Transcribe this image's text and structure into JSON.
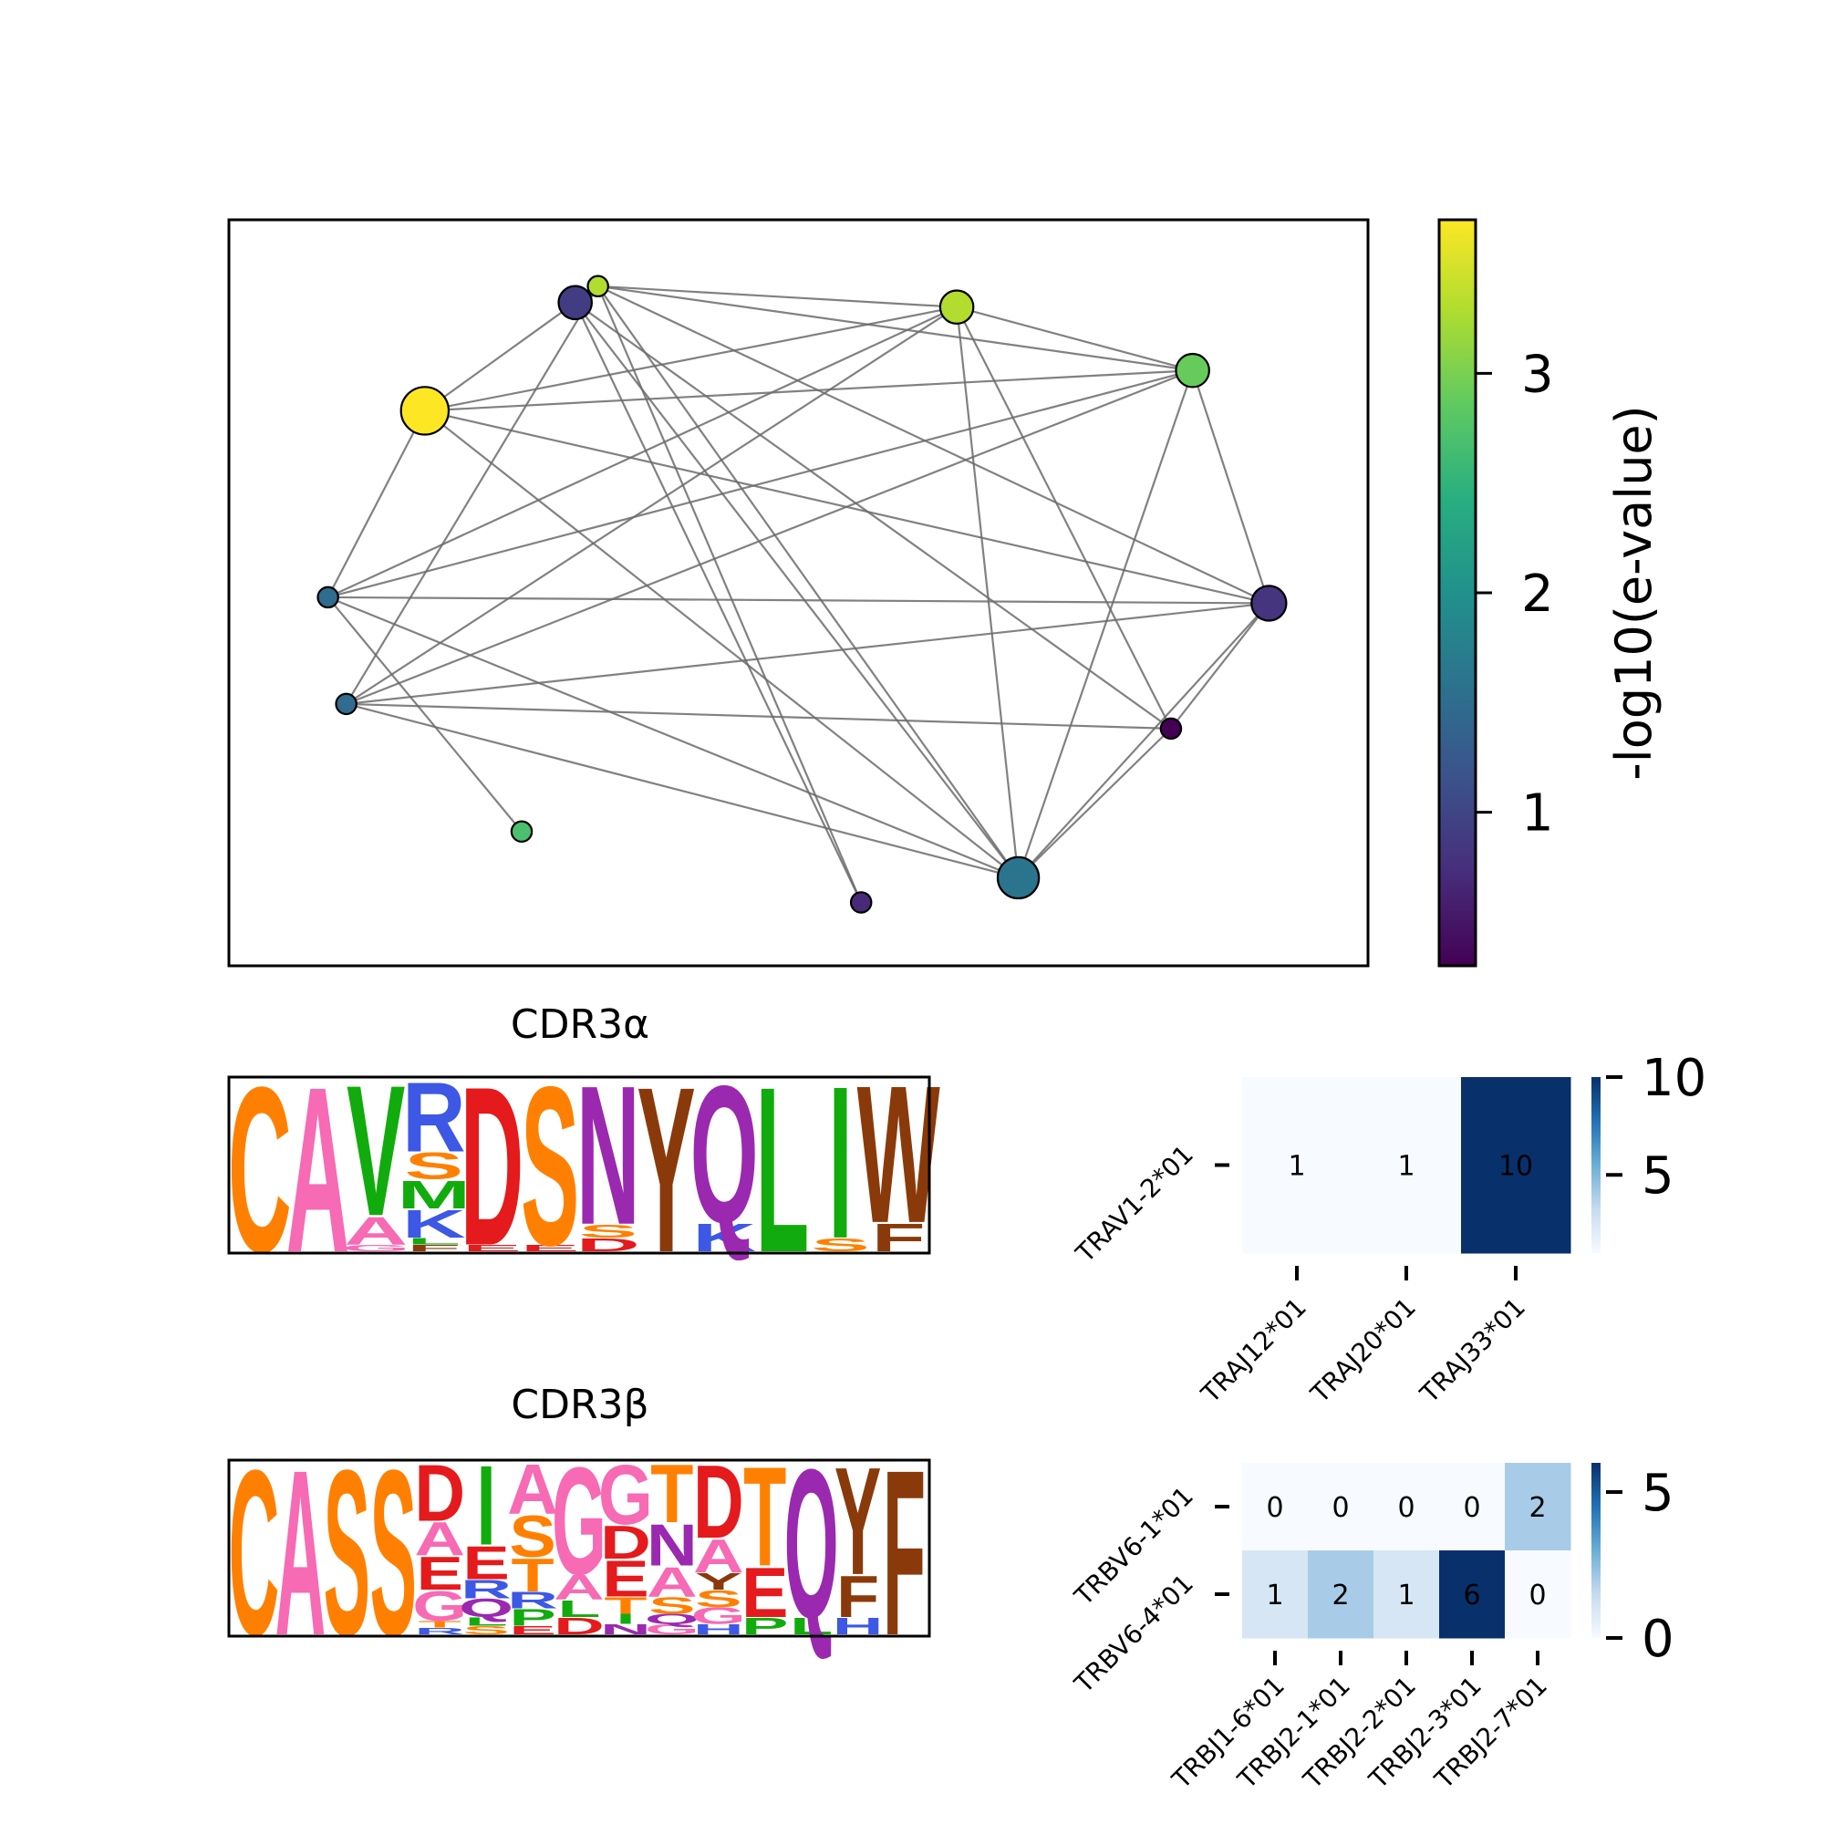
{
  "chart_data": [
    {
      "type": "network",
      "colorbar": {
        "label": "-log10(e-value)",
        "range": [
          0.3,
          3.7
        ],
        "ticks": [
          "1",
          "2",
          "3"
        ],
        "colormap": "viridis"
      },
      "nodes": [
        {
          "id": 0,
          "x": 0.172,
          "y": 0.744,
          "value": 3.7,
          "size": 2.4
        },
        {
          "id": 1,
          "x": 0.304,
          "y": 0.889,
          "value": 0.9,
          "size": 1.5
        },
        {
          "id": 2,
          "x": 0.324,
          "y": 0.911,
          "value": 3.3,
          "size": 0.7
        },
        {
          "id": 3,
          "x": 0.639,
          "y": 0.883,
          "value": 3.3,
          "size": 1.5
        },
        {
          "id": 4,
          "x": 0.846,
          "y": 0.798,
          "value": 2.9,
          "size": 1.5
        },
        {
          "id": 5,
          "x": 0.913,
          "y": 0.486,
          "value": 0.8,
          "size": 1.6
        },
        {
          "id": 6,
          "x": 0.827,
          "y": 0.318,
          "value": 0.3,
          "size": 0.7
        },
        {
          "id": 7,
          "x": 0.693,
          "y": 0.118,
          "value": 1.6,
          "size": 2.0
        },
        {
          "id": 8,
          "x": 0.555,
          "y": 0.085,
          "value": 0.7,
          "size": 0.7
        },
        {
          "id": 9,
          "x": 0.257,
          "y": 0.18,
          "value": 2.7,
          "size": 0.7
        },
        {
          "id": 10,
          "x": 0.103,
          "y": 0.351,
          "value": 1.5,
          "size": 0.7
        },
        {
          "id": 11,
          "x": 0.087,
          "y": 0.494,
          "value": 1.5,
          "size": 0.7
        }
      ],
      "edges": [
        [
          1,
          0
        ],
        [
          0,
          11
        ],
        [
          0,
          3
        ],
        [
          0,
          4
        ],
        [
          0,
          5
        ],
        [
          0,
          7
        ],
        [
          1,
          6
        ],
        [
          1,
          7
        ],
        [
          2,
          3
        ],
        [
          2,
          4
        ],
        [
          2,
          5
        ],
        [
          2,
          7
        ],
        [
          2,
          8
        ],
        [
          2,
          10
        ],
        [
          3,
          4
        ],
        [
          3,
          7
        ],
        [
          3,
          6
        ],
        [
          3,
          10
        ],
        [
          3,
          11
        ],
        [
          4,
          5
        ],
        [
          4,
          7
        ],
        [
          4,
          10
        ],
        [
          4,
          11
        ],
        [
          5,
          11
        ],
        [
          5,
          10
        ],
        [
          5,
          6
        ],
        [
          5,
          7
        ],
        [
          6,
          10
        ],
        [
          6,
          7
        ],
        [
          7,
          10
        ],
        [
          7,
          11
        ],
        [
          9,
          11
        ],
        [
          8,
          1
        ]
      ]
    },
    {
      "type": "sequence-logo",
      "title": "CDR3α",
      "positions": [
        [
          [
            "C",
            1.0
          ]
        ],
        [
          [
            "A",
            1.0
          ]
        ],
        [
          [
            "G",
            0.04
          ],
          [
            "A",
            0.17
          ],
          [
            "V",
            0.79
          ]
        ],
        [
          [
            "F",
            0.04
          ],
          [
            "L",
            0.04
          ],
          [
            "K",
            0.17
          ],
          [
            "M",
            0.17
          ],
          [
            "S",
            0.16
          ],
          [
            "R",
            0.42
          ]
        ],
        [
          [
            "E",
            0.04
          ],
          [
            "D",
            0.96
          ]
        ],
        [
          [
            "E",
            0.04
          ],
          [
            "S",
            0.96
          ]
        ],
        [
          [
            "D",
            0.08
          ],
          [
            "S",
            0.08
          ],
          [
            "N",
            0.84
          ]
        ],
        [
          [
            "Y",
            1.0
          ]
        ],
        [
          [
            "K",
            0.17
          ],
          [
            "Q",
            0.83
          ]
        ],
        [
          [
            "L",
            1.0
          ]
        ],
        [
          [
            "S",
            0.08
          ],
          [
            "I",
            0.92
          ]
        ],
        [
          [
            "F",
            0.17
          ],
          [
            "W",
            0.83
          ]
        ]
      ]
    },
    {
      "type": "sequence-logo",
      "title": "CDR3β",
      "positions": [
        [
          [
            "C",
            1.0
          ]
        ],
        [
          [
            "A",
            1.0
          ]
        ],
        [
          [
            "S",
            1.0
          ]
        ],
        [
          [
            "S",
            1.0
          ]
        ],
        [
          [
            "R",
            0.04
          ],
          [
            "T",
            0.04
          ],
          [
            "G",
            0.18
          ],
          [
            "E",
            0.2
          ],
          [
            "A",
            0.2
          ],
          [
            "D",
            0.34
          ]
        ],
        [
          [
            "S",
            0.05
          ],
          [
            "L",
            0.05
          ],
          [
            "Q",
            0.11
          ],
          [
            "R",
            0.11
          ],
          [
            "E",
            0.2
          ],
          [
            "I",
            0.48
          ]
        ],
        [
          [
            "E",
            0.05
          ],
          [
            "P",
            0.1
          ],
          [
            "R",
            0.1
          ],
          [
            "T",
            0.2
          ],
          [
            "S",
            0.25
          ],
          [
            "A",
            0.3
          ]
        ],
        [
          [
            "D",
            0.1
          ],
          [
            "L",
            0.1
          ],
          [
            "A",
            0.15
          ],
          [
            "G",
            0.65
          ]
        ],
        [
          [
            "N",
            0.06
          ],
          [
            "I",
            0.06
          ],
          [
            "T",
            0.1
          ],
          [
            "E",
            0.22
          ],
          [
            "D",
            0.2
          ],
          [
            "G",
            0.36
          ]
        ],
        [
          [
            "G",
            0.06
          ],
          [
            "Q",
            0.06
          ],
          [
            "S",
            0.1
          ],
          [
            "A",
            0.18
          ],
          [
            "N",
            0.25
          ],
          [
            "T",
            0.35
          ]
        ],
        [
          [
            "H",
            0.06
          ],
          [
            "G",
            0.1
          ],
          [
            "S",
            0.1
          ],
          [
            "Y",
            0.1
          ],
          [
            "A",
            0.2
          ],
          [
            "D",
            0.44
          ]
        ],
        [
          [
            "P",
            0.1
          ],
          [
            "E",
            0.3
          ],
          [
            "T",
            0.6
          ]
        ],
        [
          [
            "L",
            0.1
          ],
          [
            "Q",
            0.9
          ]
        ],
        [
          [
            "H",
            0.1
          ],
          [
            "F",
            0.25
          ],
          [
            "Y",
            0.65
          ]
        ],
        [
          [
            "F",
            1.0
          ]
        ]
      ]
    },
    {
      "type": "heatmap",
      "rows": [
        "TRAV1-2*01"
      ],
      "columns": [
        "TRAJ12*01",
        "TRAJ20*01",
        "TRAJ33*01"
      ],
      "values": [
        [
          1,
          1,
          10
        ]
      ],
      "colorbar": {
        "range": [
          1,
          10
        ],
        "ticks": [
          "5",
          "10"
        ],
        "colormap": "Blues"
      }
    },
    {
      "type": "heatmap",
      "rows": [
        "TRBV6-1*01",
        "TRBV6-4*01"
      ],
      "columns": [
        "TRBJ1-6*01",
        "TRBJ2-1*01",
        "TRBJ2-2*01",
        "TRBJ2-3*01",
        "TRBJ2-7*01"
      ],
      "values": [
        [
          0,
          0,
          0,
          0,
          2
        ],
        [
          1,
          2,
          1,
          6,
          0
        ]
      ],
      "colorbar": {
        "range": [
          0,
          6
        ],
        "ticks": [
          "0",
          "5"
        ],
        "colormap": "Blues"
      }
    }
  ],
  "aa_colors": {
    "C": "#ff8000",
    "A": "#f76ab4",
    "V": "#12ab0d",
    "R": "#3c58e5",
    "S": "#ff8000",
    "M": "#12ab0d",
    "K": "#3c58e5",
    "L": "#12ab0d",
    "G": "#f76ab4",
    "F": "#8a3a0a",
    "E": "#e41a1c",
    "D": "#e41a1c",
    "N": "#9a29b0",
    "Y": "#8a3a0a",
    "Q": "#9a29b0",
    "I": "#12ab0d",
    "W": "#8a3a0a",
    "T": "#ff8000",
    "P": "#12ab0d",
    "H": "#3c58e5"
  }
}
